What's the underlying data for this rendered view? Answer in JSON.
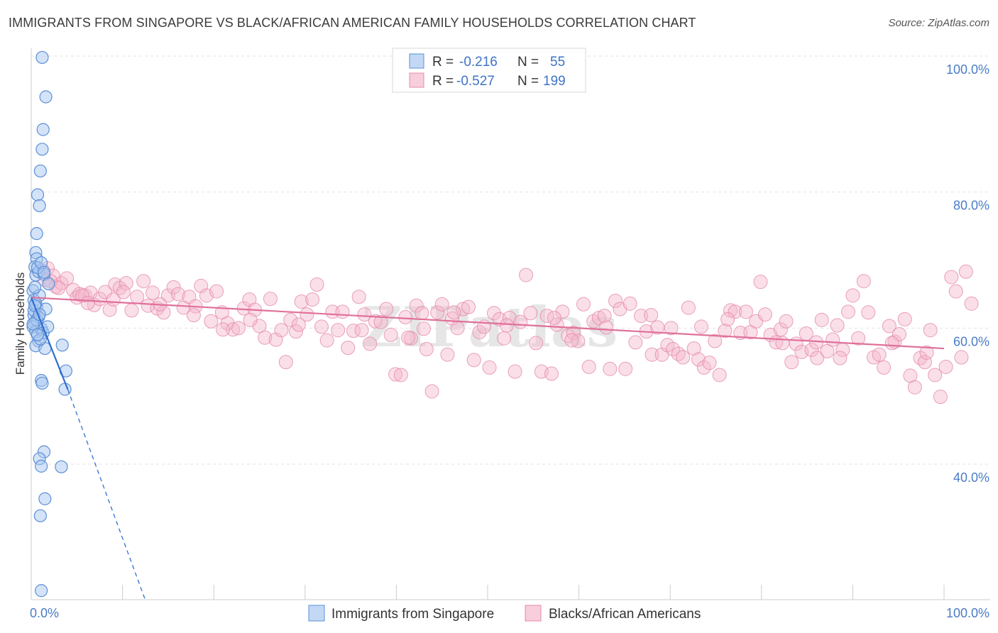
{
  "title": "IMMIGRANTS FROM SINGAPORE VS BLACK/AFRICAN AMERICAN FAMILY HOUSEHOLDS CORRELATION CHART",
  "source": "Source: ZipAtlas.com",
  "watermark": "ZIPatlas",
  "chart_data": {
    "type": "scatter",
    "xlabel": "",
    "ylabel": "Family Households",
    "xlim": [
      0,
      100
    ],
    "ylim": [
      20,
      102
    ],
    "x_ticks": [
      {
        "value": 0,
        "label": "0.0%"
      },
      {
        "value": 100,
        "label": "100.0%"
      }
    ],
    "y_ticks": [
      {
        "value": 40,
        "label": "40.0%"
      },
      {
        "value": 60,
        "label": "60.0%"
      },
      {
        "value": 80,
        "label": "80.0%"
      },
      {
        "value": 100,
        "label": "100.0%"
      }
    ],
    "grid": true,
    "legend_placement": "top-center",
    "colors": {
      "singapore_fill": "#a9c8f0",
      "singapore_stroke": "#5b8fd8",
      "singapore_line": "#2f6fd0",
      "black_fill": "#f5b8cd",
      "black_stroke": "#e58aab",
      "black_line": "#e0709a"
    },
    "legend": [
      {
        "r_label": "R =",
        "r_value": "-0.216",
        "n_label": "N =",
        "n_value": "55"
      },
      {
        "r_label": "R =",
        "r_value": "-0.527",
        "n_label": "N =",
        "n_value": "199"
      }
    ],
    "series": [
      {
        "name": "Immigrants from Singapore",
        "trend": {
          "x0": 0,
          "y0": 64.5,
          "x1": 4.0,
          "y1": 51.0,
          "dashed_to_x": 12.5,
          "dashed_to_y": 20
        },
        "points": [
          [
            1.2,
            99.8
          ],
          [
            1.6,
            94.0
          ],
          [
            1.3,
            89.2
          ],
          [
            1.2,
            86.3
          ],
          [
            1.0,
            83.1
          ],
          [
            0.7,
            79.6
          ],
          [
            0.9,
            78.0
          ],
          [
            0.6,
            73.9
          ],
          [
            0.5,
            71.1
          ],
          [
            0.6,
            70.2
          ],
          [
            0.4,
            69.0
          ],
          [
            0.5,
            67.8
          ],
          [
            0.8,
            68.3
          ],
          [
            1.4,
            67.9
          ],
          [
            1.9,
            66.5
          ],
          [
            0.2,
            65.5
          ],
          [
            0.3,
            64.1
          ],
          [
            0.6,
            63.1
          ],
          [
            1.6,
            62.8
          ],
          [
            0.3,
            61.9
          ],
          [
            0.8,
            61.6
          ],
          [
            0.4,
            60.8
          ],
          [
            0.2,
            60.2
          ],
          [
            0.5,
            59.5
          ],
          [
            1.1,
            59.9
          ],
          [
            1.3,
            59.3
          ],
          [
            0.8,
            58.1
          ],
          [
            0.5,
            57.4
          ],
          [
            1.5,
            57.0
          ],
          [
            3.4,
            57.5
          ],
          [
            1.0,
            58.4
          ],
          [
            0.3,
            62.6
          ],
          [
            0.9,
            64.8
          ],
          [
            0.4,
            66.0
          ],
          [
            0.7,
            68.9
          ],
          [
            1.1,
            69.6
          ],
          [
            0.5,
            63.6
          ],
          [
            0.6,
            61.2
          ],
          [
            0.2,
            60.6
          ],
          [
            0.7,
            59.0
          ],
          [
            1.8,
            60.2
          ],
          [
            3.8,
            53.7
          ],
          [
            1.1,
            52.3
          ],
          [
            1.2,
            51.9
          ],
          [
            3.7,
            51.0
          ],
          [
            1.4,
            41.8
          ],
          [
            0.9,
            40.8
          ],
          [
            1.1,
            39.7
          ],
          [
            3.3,
            39.6
          ],
          [
            1.5,
            34.9
          ],
          [
            1.0,
            32.4
          ],
          [
            1.1,
            21.4
          ],
          [
            0.4,
            63.3
          ],
          [
            0.9,
            62.0
          ],
          [
            1.4,
            68.2
          ]
        ]
      },
      {
        "name": "Blacks/African Americans",
        "trend": {
          "x0": 0,
          "y0": 64.5,
          "x1": 100,
          "y1": 57.0
        },
        "points": [
          [
            1.3,
            68.4
          ],
          [
            1.8,
            68.8
          ],
          [
            2.4,
            67.7
          ],
          [
            2.7,
            66.1
          ],
          [
            3.3,
            66.6
          ],
          [
            3.9,
            67.3
          ],
          [
            4.6,
            65.6
          ],
          [
            5.0,
            64.5
          ],
          [
            5.3,
            65.0
          ],
          [
            5.9,
            64.8
          ],
          [
            6.5,
            65.2
          ],
          [
            6.9,
            63.4
          ],
          [
            7.5,
            64.3
          ],
          [
            8.1,
            65.3
          ],
          [
            8.6,
            62.7
          ],
          [
            9.2,
            66.4
          ],
          [
            9.7,
            65.9
          ],
          [
            10.4,
            66.6
          ],
          [
            11.0,
            62.6
          ],
          [
            11.6,
            64.6
          ],
          [
            12.3,
            66.9
          ],
          [
            12.8,
            63.3
          ],
          [
            13.3,
            65.2
          ],
          [
            13.8,
            62.9
          ],
          [
            14.5,
            62.3
          ],
          [
            15.0,
            64.8
          ],
          [
            15.6,
            66.0
          ],
          [
            16.1,
            65.0
          ],
          [
            16.7,
            63.0
          ],
          [
            17.3,
            64.6
          ],
          [
            18.0,
            63.2
          ],
          [
            18.6,
            66.2
          ],
          [
            19.2,
            64.8
          ],
          [
            19.7,
            61.0
          ],
          [
            20.3,
            65.4
          ],
          [
            20.9,
            62.3
          ],
          [
            21.5,
            60.7
          ],
          [
            22.1,
            59.8
          ],
          [
            22.7,
            60.0
          ],
          [
            23.3,
            62.9
          ],
          [
            23.9,
            64.2
          ],
          [
            24.5,
            62.7
          ],
          [
            25.0,
            60.3
          ],
          [
            25.6,
            58.6
          ],
          [
            26.2,
            64.3
          ],
          [
            26.8,
            58.3
          ],
          [
            27.4,
            59.7
          ],
          [
            27.9,
            55.0
          ],
          [
            28.4,
            61.2
          ],
          [
            29.0,
            59.5
          ],
          [
            29.6,
            63.9
          ],
          [
            30.2,
            62.0
          ],
          [
            30.8,
            64.2
          ],
          [
            31.3,
            66.4
          ],
          [
            31.8,
            60.2
          ],
          [
            32.4,
            58.2
          ],
          [
            33.0,
            62.4
          ],
          [
            33.6,
            59.7
          ],
          [
            34.1,
            62.4
          ],
          [
            34.7,
            57.1
          ],
          [
            35.3,
            59.6
          ],
          [
            35.9,
            64.6
          ],
          [
            36.5,
            62.0
          ],
          [
            37.1,
            57.7
          ],
          [
            37.7,
            61.0
          ],
          [
            38.3,
            60.9
          ],
          [
            38.9,
            62.8
          ],
          [
            39.4,
            59.0
          ],
          [
            39.9,
            53.2
          ],
          [
            40.5,
            53.1
          ],
          [
            41.0,
            61.6
          ],
          [
            41.6,
            58.5
          ],
          [
            42.2,
            63.3
          ],
          [
            42.8,
            62.2
          ],
          [
            43.3,
            56.9
          ],
          [
            43.9,
            50.7
          ],
          [
            44.5,
            62.3
          ],
          [
            45.0,
            63.5
          ],
          [
            45.6,
            56.1
          ],
          [
            46.1,
            61.4
          ],
          [
            46.7,
            60.0
          ],
          [
            47.3,
            62.8
          ],
          [
            47.9,
            63.1
          ],
          [
            48.5,
            55.3
          ],
          [
            49.1,
            59.4
          ],
          [
            49.6,
            60.2
          ],
          [
            50.2,
            54.2
          ],
          [
            50.7,
            62.2
          ],
          [
            51.3,
            61.3
          ],
          [
            51.8,
            58.5
          ],
          [
            52.4,
            61.5
          ],
          [
            53.0,
            53.6
          ],
          [
            53.6,
            60.9
          ],
          [
            54.2,
            67.8
          ],
          [
            54.7,
            62.2
          ],
          [
            55.3,
            57.8
          ],
          [
            55.9,
            53.6
          ],
          [
            56.5,
            61.8
          ],
          [
            57.0,
            53.3
          ],
          [
            57.6,
            60.5
          ],
          [
            58.2,
            62.4
          ],
          [
            58.8,
            58.9
          ],
          [
            59.4,
            59.3
          ],
          [
            59.9,
            58.1
          ],
          [
            60.5,
            63.5
          ],
          [
            61.1,
            54.3
          ],
          [
            61.6,
            61.0
          ],
          [
            62.2,
            61.5
          ],
          [
            62.8,
            61.8
          ],
          [
            63.4,
            54.0
          ],
          [
            64.0,
            64.0
          ],
          [
            64.5,
            62.8
          ],
          [
            65.1,
            54.0
          ],
          [
            65.6,
            63.6
          ],
          [
            66.2,
            57.9
          ],
          [
            66.8,
            61.8
          ],
          [
            67.4,
            59.5
          ],
          [
            68.0,
            56.1
          ],
          [
            68.6,
            60.1
          ],
          [
            69.1,
            56.1
          ],
          [
            69.7,
            57.5
          ],
          [
            70.3,
            56.9
          ],
          [
            70.9,
            56.2
          ],
          [
            71.4,
            55.7
          ],
          [
            72.0,
            63.0
          ],
          [
            72.6,
            57.0
          ],
          [
            73.1,
            55.4
          ],
          [
            73.7,
            54.2
          ],
          [
            74.3,
            54.9
          ],
          [
            74.9,
            58.1
          ],
          [
            75.4,
            53.1
          ],
          [
            76.0,
            59.6
          ],
          [
            76.6,
            62.6
          ],
          [
            77.1,
            62.4
          ],
          [
            77.7,
            59.3
          ],
          [
            78.3,
            62.4
          ],
          [
            78.8,
            59.4
          ],
          [
            79.4,
            61.0
          ],
          [
            79.9,
            66.8
          ],
          [
            80.4,
            62.0
          ],
          [
            81.0,
            59.0
          ],
          [
            81.6,
            57.9
          ],
          [
            82.1,
            59.8
          ],
          [
            82.7,
            61.0
          ],
          [
            83.3,
            55.0
          ],
          [
            83.8,
            57.7
          ],
          [
            84.4,
            56.5
          ],
          [
            84.9,
            59.2
          ],
          [
            85.5,
            56.8
          ],
          [
            86.1,
            55.6
          ],
          [
            86.6,
            61.2
          ],
          [
            87.2,
            56.6
          ],
          [
            87.8,
            58.3
          ],
          [
            88.3,
            60.4
          ],
          [
            88.9,
            56.8
          ],
          [
            89.5,
            62.4
          ],
          [
            90.0,
            64.8
          ],
          [
            90.6,
            58.5
          ],
          [
            91.2,
            66.9
          ],
          [
            91.7,
            62.3
          ],
          [
            92.3,
            55.7
          ],
          [
            92.9,
            56.1
          ],
          [
            93.4,
            54.2
          ],
          [
            94.0,
            60.3
          ],
          [
            94.6,
            58.0
          ],
          [
            95.1,
            59.1
          ],
          [
            95.7,
            61.3
          ],
          [
            96.3,
            53.0
          ],
          [
            96.8,
            51.3
          ],
          [
            97.4,
            55.6
          ],
          [
            97.9,
            55.0
          ],
          [
            98.5,
            59.7
          ],
          [
            99.0,
            53.1
          ],
          [
            99.6,
            49.9
          ],
          [
            100.2,
            54.3
          ],
          [
            100.8,
            67.5
          ],
          [
            101.3,
            65.4
          ],
          [
            101.9,
            55.7
          ],
          [
            102.4,
            68.3
          ],
          [
            103.0,
            63.6
          ],
          [
            1.5,
            67.1
          ],
          [
            2.1,
            66.9
          ],
          [
            3.0,
            65.9
          ],
          [
            5.6,
            64.8
          ],
          [
            6.2,
            63.7
          ],
          [
            9.0,
            64.2
          ],
          [
            10.1,
            65.3
          ],
          [
            14.1,
            63.5
          ],
          [
            17.8,
            61.9
          ],
          [
            21.0,
            59.8
          ],
          [
            24.0,
            61.2
          ],
          [
            29.3,
            60.5
          ],
          [
            36.2,
            59.7
          ],
          [
            41.3,
            58.6
          ],
          [
            46.3,
            62.3
          ],
          [
            52.1,
            60.4
          ],
          [
            57.3,
            61.5
          ],
          [
            63.0,
            60.1
          ],
          [
            70.1,
            60.0
          ],
          [
            76.3,
            61.3
          ],
          [
            82.3,
            57.8
          ],
          [
            88.6,
            55.6
          ],
          [
            94.3,
            57.8
          ],
          [
            98.1,
            56.4
          ],
          [
            59.2,
            58.2
          ],
          [
            67.9,
            61.9
          ],
          [
            73.4,
            60.2
          ],
          [
            86.0,
            57.9
          ],
          [
            43.0,
            59.9
          ]
        ]
      }
    ]
  },
  "bottom_legend": [
    "Immigrants from Singapore",
    "Blacks/African Americans"
  ]
}
